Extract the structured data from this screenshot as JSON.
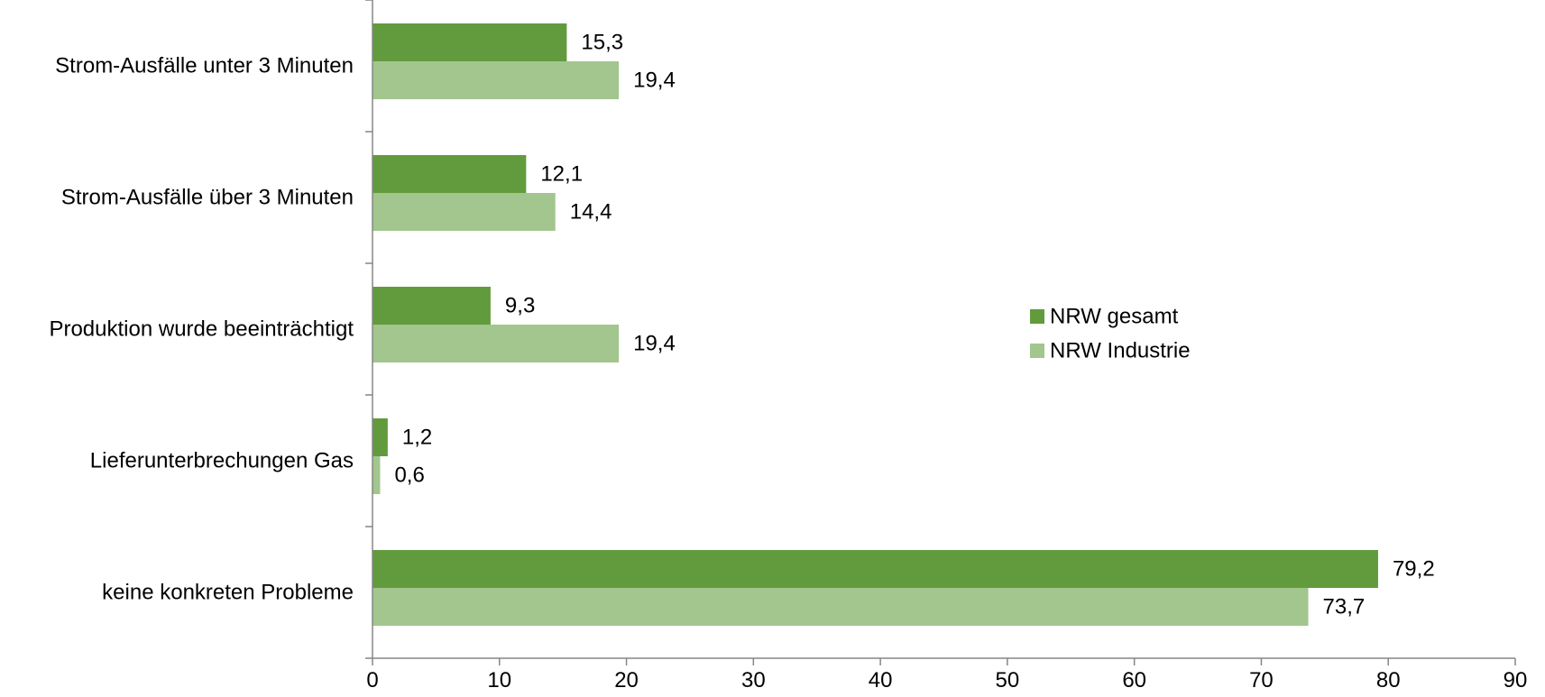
{
  "chart_data": {
    "type": "bar",
    "orientation": "horizontal",
    "categories": [
      "Strom-Ausfälle unter 3 Minuten",
      "Strom-Ausfälle über 3 Minuten",
      "Produktion wurde beeinträchtigt",
      "Lieferunterbrechungen Gas",
      "keine konkreten Probleme"
    ],
    "series": [
      {
        "name": "NRW gesamt",
        "color": "#629b3d",
        "values": [
          15.3,
          12.1,
          9.3,
          1.2,
          79.2
        ],
        "labels": [
          "15,3",
          "12,1",
          "9,3",
          "1,2",
          "79,2"
        ]
      },
      {
        "name": "NRW Industrie",
        "color": "#a2c68d",
        "values": [
          19.4,
          14.4,
          19.4,
          0.6,
          73.7
        ],
        "labels": [
          "19,4",
          "14,4",
          "19,4",
          "0,6",
          "73,7"
        ]
      }
    ],
    "xlim": [
      0,
      90
    ],
    "xticks": [
      0,
      10,
      20,
      30,
      40,
      50,
      60,
      70,
      80,
      90
    ],
    "xtick_labels": [
      "0",
      "10",
      "20",
      "30",
      "40",
      "50",
      "60",
      "70",
      "80",
      "90"
    ],
    "grid": false,
    "legend_position": "right",
    "axis_color": "#868686"
  }
}
